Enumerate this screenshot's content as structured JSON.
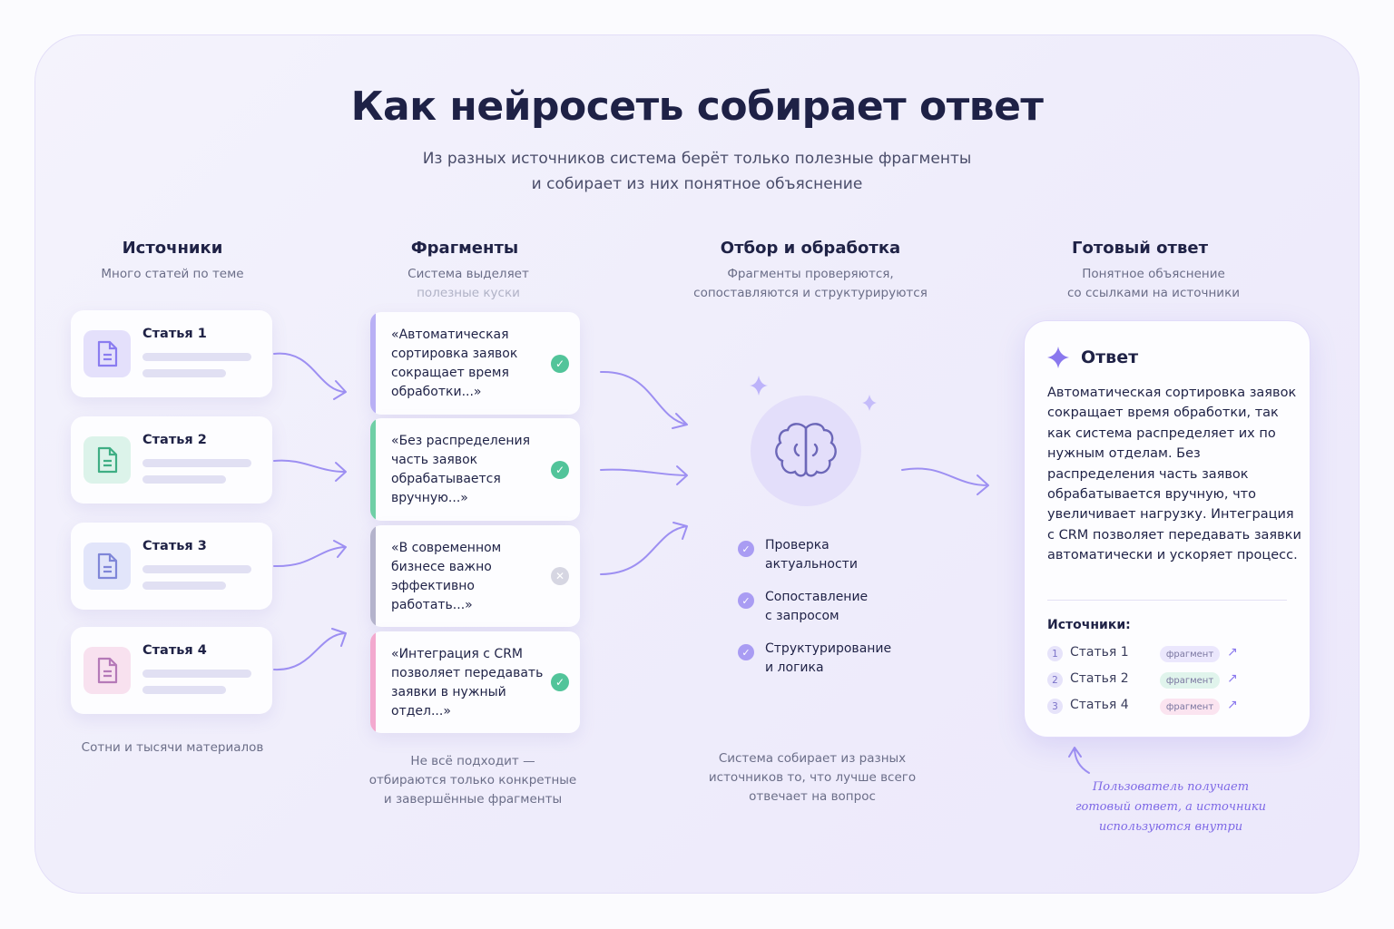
{
  "title": "Как нейросеть собирает ответ",
  "subtitle": [
    "Из разных источников система берёт только полезные фрагменты",
    "и собирает из них понятное объяснение"
  ],
  "columns": [
    {
      "title": "Источники",
      "subtitle": [
        "Много статей по теме"
      ],
      "footer": [
        "Сотни и тысячи материалов"
      ]
    },
    {
      "title": "Фрагменты",
      "subtitle": [
        "Система выделяет",
        "полезные куски"
      ],
      "footer": [
        "Не всё подходит —",
        "отбираются только конкретные",
        "и завершённые фрагменты"
      ]
    },
    {
      "title": "Отбор и обработка",
      "subtitle": [
        "Фрагменты проверяются,",
        "сопоставляются и структурируются"
      ],
      "footer": [
        "Система собирает из разных",
        "источников то, что лучше всего",
        "отвечает на вопрос"
      ]
    },
    {
      "title": "Готовый ответ",
      "subtitle": [
        "Понятное объяснение",
        "со ссылками на источники"
      ]
    }
  ],
  "sources": [
    {
      "label": "Статья 1",
      "color": "#8a7cf0",
      "bg": "#e4e0fb",
      "icon": "document-icon"
    },
    {
      "label": "Статья 2",
      "color": "#3fae84",
      "bg": "#dcf3ea",
      "icon": "document-icon"
    },
    {
      "label": "Статья 3",
      "color": "#7f86d8",
      "bg": "#e2e5fa",
      "icon": "document-icon"
    },
    {
      "label": "Статья 4",
      "color": "#b57ab8",
      "bg": "#f8e1ef",
      "icon": "document-icon"
    }
  ],
  "fragments": [
    {
      "text": "«Автоматическая сортировка заявок сокращает время обработки...»",
      "status": "accepted",
      "edge": "#b9b0f5"
    },
    {
      "text": "«Без распределения часть заявок обрабатывается вручную...»",
      "status": "accepted",
      "edge": "#6fcfa6"
    },
    {
      "text": "«В современном бизнесе важно эффективно работать...»",
      "status": "rejected",
      "edge": "#b4b3cc"
    },
    {
      "text": "«Интеграция с CRM позволяет передавать заявки в нужный отдел...»",
      "status": "accepted",
      "edge": "#f3a9cf"
    }
  ],
  "processing": {
    "icon": "brain-icon",
    "steps": [
      [
        "Проверка",
        "актуальности"
      ],
      [
        "Сопоставление",
        "с запросом"
      ],
      [
        "Структурирование",
        "и логика"
      ]
    ]
  },
  "answer": {
    "title": "Ответ",
    "text": "Автоматическая сортировка заявок сокращает время обработки, так как система распределяет их по нужным отделам. Без распределения часть заявок обрабатывается вручную, что увеличивает нагрузку. Интеграция с CRM позволяет передавать заявки автоматически и ускоряет процесс.",
    "sources_label": "Источники:",
    "sources": [
      {
        "num": "1",
        "name": "Статья 1",
        "tag": "фрагмент",
        "tag_bg": "#ebe7fd"
      },
      {
        "num": "2",
        "name": "Статья 2",
        "tag": "фрагмент",
        "tag_bg": "#e0f4ec"
      },
      {
        "num": "3",
        "name": "Статья 4",
        "tag": "фрагмент",
        "tag_bg": "#fbe4f0"
      }
    ]
  },
  "note": [
    "Пользователь получает",
    "готовый ответ, а источники",
    "используются внутри"
  ],
  "colors": {
    "accent": "#8a78ee",
    "success": "#52c49a",
    "rejected": "#d6d6e2",
    "text": "#1e2146"
  }
}
